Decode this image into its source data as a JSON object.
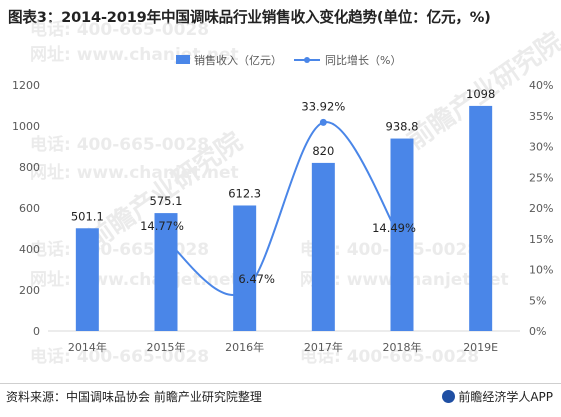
{
  "header": {
    "title": "图表3：2014-2019年中国调味品行业销售收入变化趋势(单位：亿元，%)"
  },
  "footer": {
    "source": "资料来源：中国调味品协会 前瞻产业研究院整理",
    "brand": "前瞻经济学人APP"
  },
  "watermark": {
    "phone": "电话: 400-665-0028",
    "web": "网址: www.chanjet.net",
    "stamp": "前瞻产业研究院"
  },
  "chart_data": {
    "type": "bar",
    "categories": [
      "2014年",
      "2015年",
      "2016年",
      "2017年",
      "2018年",
      "2019E"
    ],
    "series": [
      {
        "name": "销售收入（亿元）",
        "type": "bar",
        "axis": "left",
        "values": [
          501.1,
          575.1,
          612.3,
          820,
          938.8,
          1098
        ],
        "labels": [
          "501.1",
          "575.1",
          "612.3",
          "820",
          "938.8",
          "1098"
        ]
      },
      {
        "name": "同比增长（%）",
        "type": "line",
        "axis": "right",
        "values": [
          null,
          14.77,
          6.47,
          33.92,
          14.49,
          null
        ],
        "labels": [
          "",
          "14.77%",
          "6.47%",
          "33.92%",
          "14.49%",
          ""
        ]
      }
    ],
    "y_left": {
      "min": 0,
      "max": 1200,
      "ticks": [
        "0",
        "200",
        "400",
        "600",
        "800",
        "1000",
        "1200"
      ]
    },
    "y_right": {
      "min": 0,
      "max": 40,
      "ticks": [
        "0%",
        "5%",
        "10%",
        "15%",
        "20%",
        "25%",
        "30%",
        "35%",
        "40%"
      ]
    },
    "legend_position": "top-center",
    "colors": {
      "bar": "#4a86e8",
      "line": "#4a86e8",
      "axis": "#d9d9d9",
      "text": "#595959"
    }
  }
}
